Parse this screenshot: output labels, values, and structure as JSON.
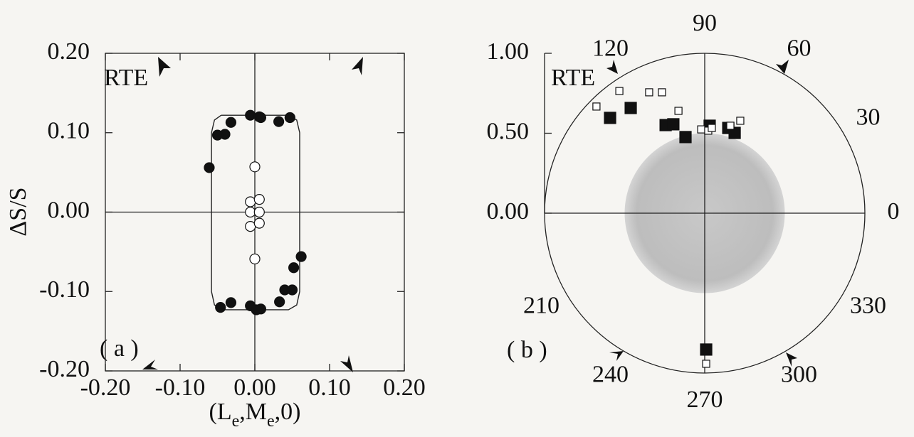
{
  "chart_data": [
    {
      "type": "scatter",
      "labels": [
        "RTE",
        "( a )"
      ],
      "y_label": "ΔS/S",
      "x_label": [
        "(L",
        "e",
        ",M",
        "e",
        ",0)"
      ],
      "xlim": [
        -0.2,
        0.2
      ],
      "ylim": [
        -0.2,
        0.2
      ],
      "xticks": [
        {
          "value": -0.2,
          "label": "-0.20"
        },
        {
          "value": -0.1,
          "label": "-0.10"
        },
        {
          "value": 0,
          "label": "0.00"
        },
        {
          "value": 0.1,
          "label": "0.10"
        },
        {
          "value": 0.2,
          "label": "0.20"
        }
      ],
      "yticks": [
        {
          "value": -0.2,
          "label": "-0.20"
        },
        {
          "value": -0.1,
          "label": "-0.10"
        },
        {
          "value": 0,
          "label": "0.00"
        },
        {
          "value": 0.1,
          "label": "0.10"
        },
        {
          "value": 0.2,
          "label": "0.20"
        }
      ],
      "series": [
        {
          "kind": "line",
          "color": "#222222",
          "x": [
            -0.045,
            0.045,
            0.056,
            0.06,
            0.06,
            0.056,
            0.045,
            -0.045,
            -0.054,
            -0.058,
            -0.058,
            -0.054,
            -0.045
          ],
          "y": [
            0.122,
            0.122,
            0.116,
            0.1,
            -0.1,
            -0.117,
            -0.123,
            -0.123,
            -0.117,
            -0.1,
            0.1,
            0.116,
            0.122
          ]
        },
        {
          "kind": "filled",
          "color": "#111111",
          "x": [
            -0.006,
            0.006,
            0.008,
            0.032,
            0.047,
            -0.032,
            -0.04,
            -0.05,
            -0.061,
            -0.006,
            0.008,
            0.002,
            0.033,
            0.04,
            0.05,
            0.052,
            0.062,
            -0.032,
            -0.046
          ],
          "y": [
            0.122,
            0.12,
            0.119,
            0.114,
            0.119,
            0.113,
            0.098,
            0.097,
            0.056,
            -0.118,
            -0.122,
            -0.123,
            -0.113,
            -0.098,
            -0.098,
            -0.07,
            -0.056,
            -0.114,
            -0.12
          ]
        },
        {
          "kind": "open",
          "color": "#111111",
          "x": [
            0,
            -0.006,
            0.006,
            -0.006,
            0.006,
            -0.006,
            0.006,
            0
          ],
          "y": [
            0.057,
            0.013,
            0.016,
            0,
            0,
            -0.018,
            -0.014,
            -0.059
          ]
        }
      ]
    },
    {
      "type": "polar",
      "labels": [
        "RTE",
        "( b )"
      ],
      "rlim": [
        0,
        1
      ],
      "rticks": [
        {
          "value": 0,
          "label": "0.00"
        },
        {
          "value": 0.5,
          "label": "0.50"
        },
        {
          "value": 1,
          "label": "1.00"
        }
      ],
      "angle_ticks": [
        0,
        30,
        60,
        90,
        120,
        210,
        240,
        270,
        300,
        330
      ],
      "shaded_radius": 0.5,
      "series": [
        {
          "kind": "filled",
          "color": "#111111",
          "x": [
            -0.591,
            -0.462,
            -0.244,
            -0.196,
            -0.12,
            0.031,
            0.147,
            0.187,
            0.009
          ],
          "y": [
            0.596,
            0.658,
            0.551,
            0.556,
            0.476,
            0.547,
            0.533,
            0.502,
            -0.853
          ]
        },
        {
          "kind": "open",
          "color": "#111111",
          "x": [
            -0.676,
            -0.533,
            -0.347,
            -0.267,
            -0.164,
            -0.022,
            0.022,
            0.044,
            0.16,
            0.222,
            0.009
          ],
          "y": [
            0.667,
            0.764,
            0.756,
            0.756,
            0.64,
            0.524,
            0.516,
            0.533,
            0.547,
            0.578,
            -0.942
          ]
        }
      ]
    }
  ]
}
